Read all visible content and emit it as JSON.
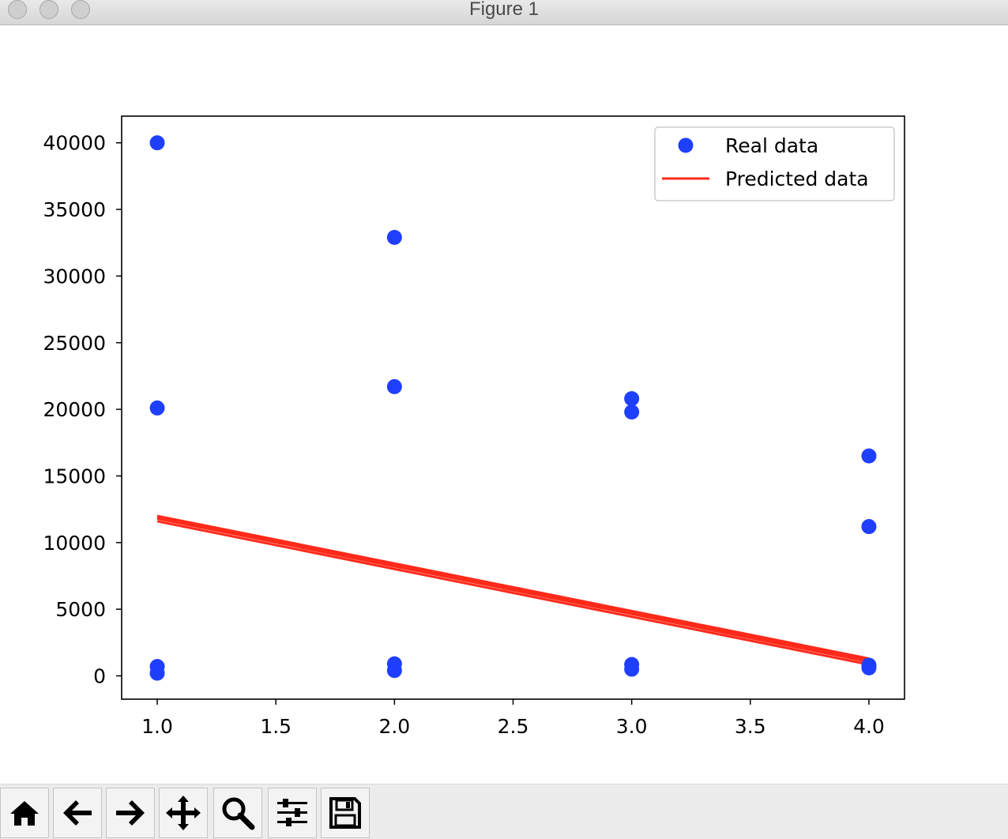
{
  "window": {
    "title": "Figure 1",
    "controls": [
      "close-icon",
      "minimize-icon",
      "zoom-icon"
    ]
  },
  "toolbar": {
    "buttons": [
      {
        "name": "home-button",
        "icon": "home-icon"
      },
      {
        "name": "back-button",
        "icon": "arrow-left-icon"
      },
      {
        "name": "forward-button",
        "icon": "arrow-right-icon"
      },
      {
        "name": "pan-button",
        "icon": "move-arrows-icon"
      },
      {
        "name": "zoom-button",
        "icon": "magnifier-icon"
      },
      {
        "name": "configure-subplots-button",
        "icon": "sliders-icon"
      },
      {
        "name": "save-button",
        "icon": "floppy-disk-icon"
      }
    ]
  },
  "chart_data": {
    "type": "scatter",
    "title": "",
    "xlabel": "",
    "ylabel": "",
    "xlim": [
      0.85,
      4.15
    ],
    "ylim": [
      -1750,
      42000
    ],
    "x_ticks": [
      "1.0",
      "1.5",
      "2.0",
      "2.5",
      "3.0",
      "3.5",
      "4.0"
    ],
    "x_tick_values": [
      1.0,
      1.5,
      2.0,
      2.5,
      3.0,
      3.5,
      4.0
    ],
    "y_ticks": [
      "0",
      "5000",
      "10000",
      "15000",
      "20000",
      "25000",
      "30000",
      "35000",
      "40000"
    ],
    "y_tick_values": [
      0,
      5000,
      10000,
      15000,
      20000,
      25000,
      30000,
      35000,
      40000
    ],
    "grid": false,
    "legend": {
      "position": "top-right"
    },
    "series": [
      {
        "name": "Real data",
        "type": "scatter",
        "color": "#1f3fff",
        "x": [
          1,
          1,
          1,
          1,
          2,
          2,
          2,
          2,
          3,
          3,
          3,
          3,
          4,
          4,
          4,
          4
        ],
        "y": [
          40000,
          20100,
          700,
          200,
          32900,
          21700,
          900,
          400,
          20800,
          19800,
          850,
          500,
          16500,
          11200,
          800,
          600
        ]
      },
      {
        "name": "Predicted data",
        "type": "line",
        "color": "#ff2a1a",
        "lines": [
          {
            "x": [
              1,
              4
            ],
            "y": [
              12000,
              1300
            ]
          },
          {
            "x": [
              1,
              4
            ],
            "y": [
              11900,
              1150
            ]
          },
          {
            "x": [
              1,
              4
            ],
            "y": [
              11800,
              1050
            ]
          },
          {
            "x": [
              1,
              4
            ],
            "y": [
              11600,
              850
            ]
          }
        ]
      }
    ]
  }
}
